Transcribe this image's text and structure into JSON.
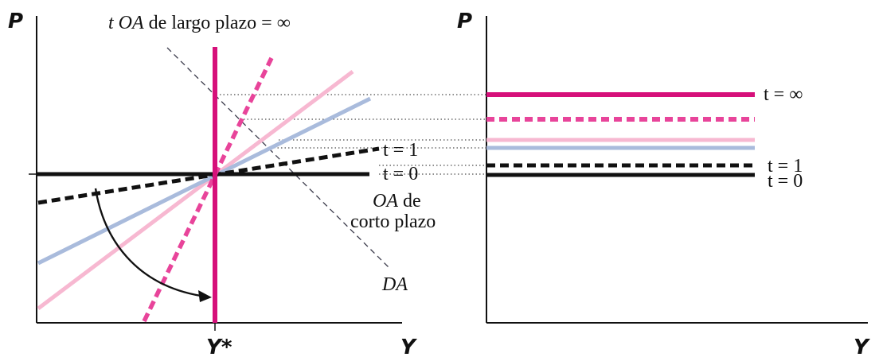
{
  "colors": {
    "axis": "#111111",
    "magenta": "#d6107a",
    "pink_light": "#f7b8d1",
    "blue_light": "#a9bbdc",
    "black": "#111111"
  },
  "left_panel": {
    "y_axis_label": "P",
    "x_axis_label": "Y",
    "ystar_label": "Y*",
    "long_run_label_t": "t",
    "long_run_label_oa": "OA",
    "long_run_label_rest": "de largo plazo = ∞",
    "t1_label": "t = 1",
    "t0_label": "t = 0",
    "short_run_line1_italic": "OA",
    "short_run_line1_rest": "de",
    "short_run_line2": "corto plazo",
    "demand_label": "DA"
  },
  "right_panel": {
    "y_axis_label": "P",
    "x_axis_label": "Y",
    "t_inf_label": "t = ∞",
    "t1_label": "t = 1",
    "t0_label": "t = 0"
  }
}
